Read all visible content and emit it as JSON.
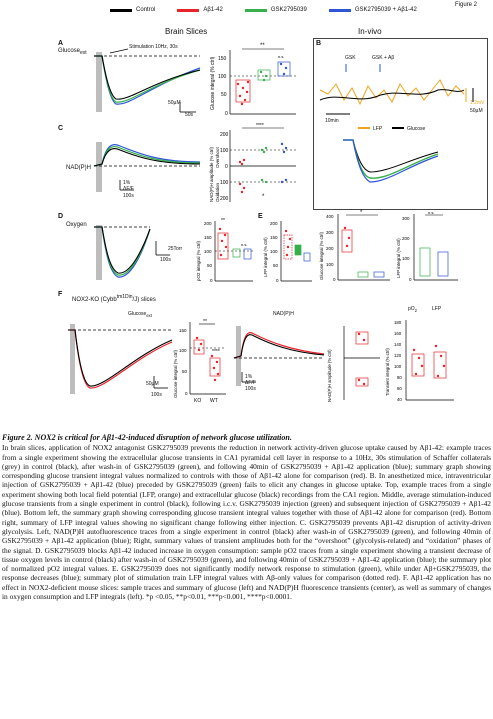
{
  "figure": {
    "label": "Figure 2",
    "legend": [
      {
        "name": "Control",
        "color": "#000000"
      },
      {
        "name": "Aβ1-42",
        "color": "#e8242a"
      },
      {
        "name": "GSK2795039",
        "color": "#35b04a"
      },
      {
        "name": "GSK2795039 + Aβ1-42",
        "color": "#2e55d6"
      }
    ],
    "section_brain": "Brain Slices",
    "section_invivo": "In-vivo",
    "panels": {
      "A": {
        "letter": "A",
        "trace_label": "Glucose",
        "trace_sub": "ext",
        "stim_label": "Stimulation 10Hz, 30s",
        "scale_v": "50µM",
        "scale_t": "50s",
        "ylabel": "Glucose integral (% ctrl)",
        "yticks": [
          "150",
          "100",
          "50",
          "0"
        ],
        "sig": "**",
        "ns": "n.s."
      },
      "B": {
        "letter": "B",
        "gsk": "GSK",
        "gsk_ab": "GSK + Aβ",
        "scale_t": "10min",
        "scale_v": "1.2mV",
        "scale_c": "50µM",
        "lfp": "LFP",
        "glucose": "Glucose"
      },
      "C": {
        "letter": "C",
        "trace_label": "NAD(P)H",
        "scale_v": "1%",
        "scale_unit": "ΔF/F",
        "scale_t": "100s",
        "ylabel_top": "NAD(P)H amplitude (% ctrl)",
        "ylabel_sub1": "Overshoot",
        "ylabel_sub2": "Oxidation",
        "yticks": [
          "200",
          "100",
          "0",
          "100",
          "200"
        ],
        "sig": "****",
        "sig2": "*"
      },
      "D": {
        "letter": "D",
        "trace_label": "Oxygen",
        "scale_v": "25Torr",
        "scale_t": "100s",
        "ylabel": "pO2 integral (% ctrl)",
        "yticks": [
          "200",
          "150",
          "100",
          "50",
          "0"
        ],
        "sig": "**",
        "ns": "n.s."
      },
      "E": {
        "letter": "E",
        "ylabel": "LFP integral (% ctrl)",
        "yticks": [
          "200",
          "150",
          "100",
          "50",
          "0"
        ]
      },
      "Bsum": {
        "ylabel1": "Glucose integral (% ctrl)",
        "yticks1": [
          "400",
          "300",
          "200",
          "100",
          "0"
        ],
        "sig": "*",
        "ylabel2": "LFP integral (% ctrl)",
        "yticks2": [
          "300",
          "200",
          "100",
          "0"
        ],
        "ns": "n.s."
      },
      "F": {
        "letter": "F",
        "title": "NOX2-KO (Cybb",
        "title_sup": "tm1Din",
        "title_end": "/J) slices",
        "glu_label": "Glucose",
        "glu_sub": "ext",
        "nadph_label": "NAD(P)H",
        "scale_v": "50µM",
        "scale_t": "100s",
        "nad_scale": "1%",
        "nad_unit": "ΔF/F",
        "ylabel": "Glucose integral (% ctrl)",
        "yticks": [
          "150",
          "100",
          "50",
          "0"
        ],
        "sig": "**",
        "sig2": "****",
        "ko": "KO",
        "wt": "WT",
        "amp_label": "NAD(P)H amplitude (% ctrl)",
        "po2": "pO",
        "po2_sub": "2",
        "lfp_label": "LFP",
        "transient_label": "Transient integral (% ctrl)",
        "yticks_right": [
          "180",
          "160",
          "140",
          "120",
          "100",
          "80",
          "60",
          "40"
        ]
      }
    }
  },
  "caption": {
    "title": "Figure 2. NOX2 is critical for Aβ1-42-induced disruption of network glucose utilization.",
    "body": "In brain slices, application of NOX2 antagonist GSK2795039 prevents the reduction in network activity-driven glucose uptake caused by Aβ1-42: example traces from a single experiment showing the extracellular glucose transients in CA1 pyramidal cell layer in response to a 10Hz, 30s stimulation of Schaffer collaterals (grey) in control (black), after wash-in of GSK2795039 (green), and following 40min of GSK2795039 + Aβ1-42 application (blue); summary graph showing corresponding glucose transient integral values normalized to controls with those of Aβ1-42 alone for comparison (red). B. In anesthetized mice, intraventricular injection of GSK2795039 + Aβ1-42 (blue) preceded by GSK2795039 (green) fails to elicit any changes in glucose uptake. Top, example traces from a single experiment showing both local field potential (LFP, orange) and extracellular glucose (black) recordings from the CA1 region. Middle, average stimulation-induced glucose transients from a single experiment in control (black), following i.c.v. GSK2795039 injection (green) and subsequent injection of GSK2795039 + Aβ1-42 (blue). Bottom left, the summary graph showing corresponding glucose transient integral values together with those of Aβ1-42 alone for comparison (red). Bottom right, summary of LFP integral values showing no significant change following either injection. C. GSK2795039 prevents Aβ1-42 disruption of activity-driven glycolysis. Left, NAD(P)H autofluorescence traces from a single experiment in control (black) after wash-in of GSK2795039 (green), and following 40min of GSK2795039 + Aβ1-42 application (blue); Right, summary values of transient amplitudes both for the “overshoot” (glycolysis-related) and “oxidation” phases of the signal. D. GSK2795039 blocks Aβ1-42 induced increase in oxygen consumption: sample pO2 traces from a single experiment showing a transient decrease of tissue oxygen levels in control (black) after wash-in of GSK2795039 (green), and following 40min of GSK2795039 + Aβ1-42 application (blue); the summary plot of normalized pO2 integral values. E. GSK2795039 does not significantly modify network response to stimulation (green), while under Aβ+GSK2795039, the response decreases (blue); summary plot of stimulation train LFP integral values with Aβ-only values for comparison (dotted red). F. Aβ1-42 application has no effect in NOX2-deficient mouse slices: sample traces and summary of glucose (left) and NAD(P)H fluorescence transients (center), as well as summary of changes in oxygen consumption and LFP integrals (left). *p <0.05, **p<0.01, ***p<0.001, ****p<0.0001."
  }
}
